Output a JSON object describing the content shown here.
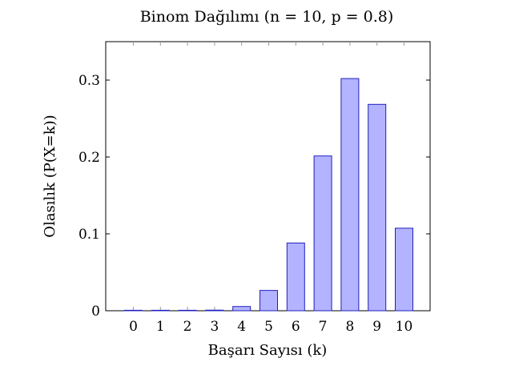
{
  "chart_data": {
    "type": "bar",
    "title": "Binom Dağılımı (n = 10, p = 0.8)",
    "xlabel": "Başarı Sayısı (k)",
    "ylabel": "Olasılık (P(X=k))",
    "categories": [
      "0",
      "1",
      "2",
      "3",
      "4",
      "5",
      "6",
      "7",
      "8",
      "9",
      "10"
    ],
    "values": [
      1e-07,
      4.1e-06,
      7.37e-05,
      0.0007864,
      0.005505,
      0.0264241,
      0.0880804,
      0.2013266,
      0.3019899,
      0.2684355,
      0.1073742
    ],
    "ylim": [
      0,
      0.35
    ],
    "yticks": [
      0,
      0.1,
      0.2,
      0.3
    ],
    "ytick_labels": [
      "0",
      "0.1",
      "0.2",
      "0.3"
    ],
    "grid": false,
    "colors": {
      "bar_fill": "#b3b3ff",
      "bar_stroke": "#2020c0",
      "axis": "#000000"
    }
  }
}
